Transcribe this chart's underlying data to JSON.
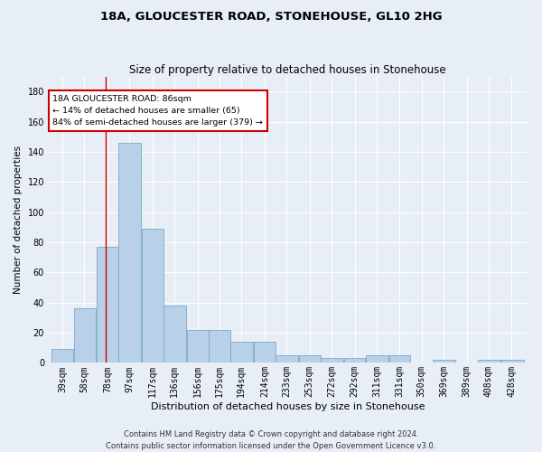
{
  "title": "18A, GLOUCESTER ROAD, STONEHOUSE, GL10 2HG",
  "subtitle": "Size of property relative to detached houses in Stonehouse",
  "xlabel": "Distribution of detached houses by size in Stonehouse",
  "ylabel": "Number of detached properties",
  "footer_line1": "Contains HM Land Registry data © Crown copyright and database right 2024.",
  "footer_line2": "Contains public sector information licensed under the Open Government Licence v3.0.",
  "bar_color": "#b8d0e8",
  "bar_edge_color": "#7aaac8",
  "vline_color": "#cc0000",
  "vline_x": 86,
  "annotation_text": "18A GLOUCESTER ROAD: 86sqm\n← 14% of detached houses are smaller (65)\n84% of semi-detached houses are larger (379) →",
  "annotation_box_color": "#ffffff",
  "annotation_box_edge": "#cc0000",
  "bins": [
    39,
    58,
    78,
    97,
    117,
    136,
    156,
    175,
    194,
    214,
    233,
    253,
    272,
    292,
    311,
    331,
    350,
    369,
    389,
    408,
    428
  ],
  "values": [
    9,
    36,
    77,
    146,
    89,
    38,
    22,
    22,
    14,
    14,
    5,
    5,
    3,
    3,
    5,
    5,
    0,
    2,
    0,
    2,
    2
  ],
  "ylim": [
    0,
    190
  ],
  "yticks": [
    0,
    20,
    40,
    60,
    80,
    100,
    120,
    140,
    160,
    180
  ],
  "bg_color": "#e8eef5",
  "grid_color": "#ffffff",
  "title_fontsize": 9.5,
  "subtitle_fontsize": 8.5,
  "tick_fontsize": 7,
  "ylabel_fontsize": 7.5,
  "xlabel_fontsize": 8
}
